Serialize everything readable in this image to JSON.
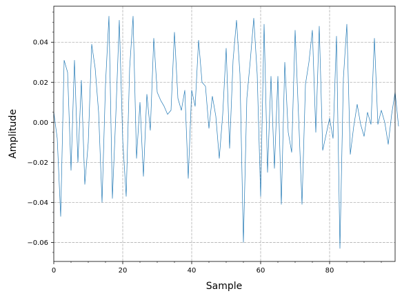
{
  "chart_data": {
    "type": "line",
    "title": "",
    "xlabel": "Sample",
    "ylabel": "Amplitude",
    "xlim": [
      0,
      99
    ],
    "ylim": [
      -0.0695,
      0.058
    ],
    "grid": true,
    "grid_style": "dashed",
    "legend": "none",
    "x_ticks": [
      0,
      20,
      40,
      60,
      80
    ],
    "x_tick_labels": [
      "0",
      "20",
      "40",
      "60",
      "80"
    ],
    "y_ticks": [
      -0.06,
      -0.04,
      -0.02,
      0.0,
      0.02,
      0.04
    ],
    "y_tick_labels": [
      "−0.06",
      "−0.04",
      "−0.02",
      "0.00",
      "0.02",
      "0.04"
    ],
    "colors": {
      "line": "#1f77b4",
      "grid": "#b0b0b0",
      "axes": "#000000",
      "background": "#ffffff"
    },
    "series": [
      {
        "values": [
          0.005,
          -0.008,
          -0.047,
          0.031,
          0.025,
          -0.024,
          0.031,
          -0.02,
          0.021,
          -0.031,
          -0.01,
          0.039,
          0.027,
          0.005,
          -0.04,
          0.019,
          0.053,
          -0.038,
          0.004,
          0.051,
          -0.009,
          -0.037,
          0.027,
          0.053,
          -0.018,
          0.01,
          -0.027,
          0.014,
          -0.004,
          0.042,
          0.015,
          0.011,
          0.008,
          0.004,
          0.006,
          0.045,
          0.012,
          0.006,
          0.016,
          -0.028,
          0.016,
          0.008,
          0.041,
          0.02,
          0.018,
          -0.003,
          0.013,
          0.003,
          -0.018,
          0.004,
          0.037,
          -0.013,
          0.031,
          0.051,
          0.024,
          -0.06,
          0.012,
          0.031,
          0.052,
          0.024,
          -0.037,
          0.049,
          -0.025,
          0.023,
          -0.023,
          0.023,
          -0.041,
          0.03,
          -0.005,
          -0.015,
          0.046,
          0.003,
          -0.041,
          0.019,
          0.03,
          0.046,
          -0.005,
          0.048,
          -0.014,
          -0.006,
          0.002,
          -0.008,
          0.043,
          -0.063,
          0.022,
          0.049,
          -0.016,
          -0.002,
          0.009,
          -0.001,
          -0.007,
          0.005,
          -0.001,
          0.042,
          -0.001,
          0.006,
          0.0,
          -0.011,
          0.004,
          0.015,
          -0.002
        ]
      }
    ]
  }
}
